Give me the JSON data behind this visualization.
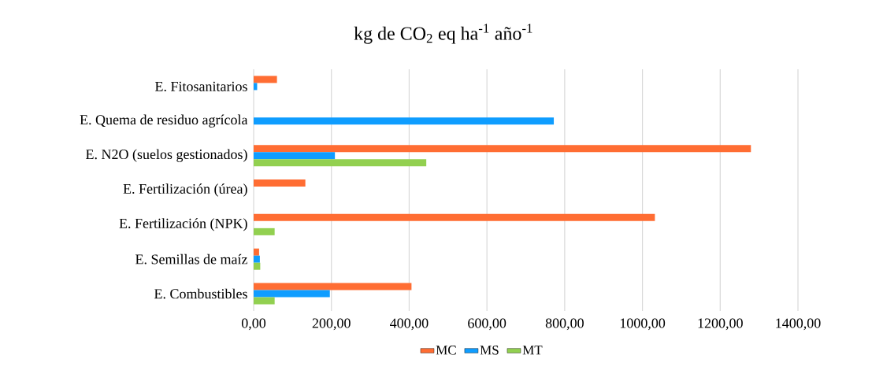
{
  "chart_data": {
    "type": "bar",
    "orientation": "horizontal",
    "title": "kg de CO$_{2}$ eq ha$^{-1}$ año$^{-1}$",
    "categories": [
      "E.  Fitosanitarios",
      "E. Quema de residuo agrícola",
      "E. N2O (suelos gestionados)",
      "E. Fertilización (úrea)",
      "E. Fertilización (NPK)",
      "E. Semillas de maíz",
      "E. Combustibles"
    ],
    "series": [
      {
        "name": "MC",
        "color": "#ff6d33",
        "values": [
          60,
          null,
          1279,
          133,
          1032,
          14,
          406
        ]
      },
      {
        "name": "MS",
        "color": "#0f9dff",
        "values": [
          9,
          772,
          209,
          null,
          null,
          16,
          196
        ]
      },
      {
        "name": "MT",
        "color": "#92d050",
        "values": [
          null,
          null,
          444,
          null,
          54,
          17,
          54
        ]
      }
    ],
    "xlim": [
      0,
      1400
    ],
    "xticks": [
      {
        "value": 0,
        "label": "0,00"
      },
      {
        "value": 200,
        "label": "200,00"
      },
      {
        "value": 400,
        "label": "400,00"
      },
      {
        "value": 600,
        "label": "600,00"
      },
      {
        "value": 800,
        "label": "800,00"
      },
      {
        "value": 1000,
        "label": "1000,00"
      },
      {
        "value": 1200,
        "label": "1200,00"
      },
      {
        "value": 1400,
        "label": "1400,00"
      }
    ],
    "grid": "x",
    "legend": "bottom"
  }
}
